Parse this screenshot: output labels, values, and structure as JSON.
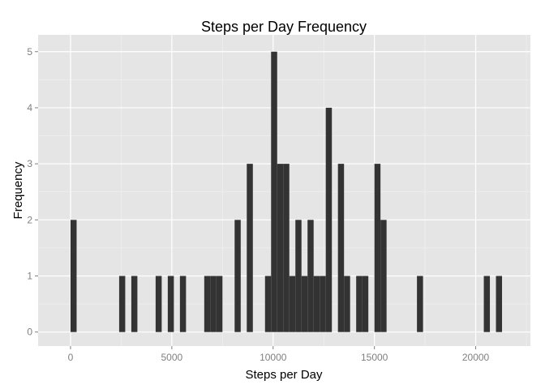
{
  "chart_data": {
    "type": "bar",
    "title": "Steps per Day Frequency",
    "xlabel": "Steps per Day",
    "ylabel": "Frequency",
    "xlim": [
      -1600,
      22700
    ],
    "ylim": [
      -0.25,
      5.3
    ],
    "bin_width": 300,
    "x_ticks": [
      0,
      5000,
      10000,
      15000,
      20000
    ],
    "x_tick_labels": [
      "0",
      "5000",
      "10000",
      "15000",
      "20000"
    ],
    "y_ticks": [
      0,
      1,
      2,
      3,
      4,
      5
    ],
    "y_tick_labels": [
      "0",
      "1",
      "2",
      "3",
      "4",
      "5"
    ],
    "grid": true,
    "bins": [
      {
        "x": 150,
        "count": 2
      },
      {
        "x": 2550,
        "count": 1
      },
      {
        "x": 3150,
        "count": 1
      },
      {
        "x": 4350,
        "count": 1
      },
      {
        "x": 4950,
        "count": 1
      },
      {
        "x": 5550,
        "count": 1
      },
      {
        "x": 6750,
        "count": 1
      },
      {
        "x": 7050,
        "count": 1
      },
      {
        "x": 7350,
        "count": 1
      },
      {
        "x": 8250,
        "count": 2
      },
      {
        "x": 8850,
        "count": 3
      },
      {
        "x": 9750,
        "count": 1
      },
      {
        "x": 10050,
        "count": 5
      },
      {
        "x": 10350,
        "count": 3
      },
      {
        "x": 10650,
        "count": 3
      },
      {
        "x": 10950,
        "count": 1
      },
      {
        "x": 11250,
        "count": 2
      },
      {
        "x": 11550,
        "count": 1
      },
      {
        "x": 11850,
        "count": 2
      },
      {
        "x": 12150,
        "count": 1
      },
      {
        "x": 12450,
        "count": 1
      },
      {
        "x": 12750,
        "count": 4
      },
      {
        "x": 13350,
        "count": 3
      },
      {
        "x": 13650,
        "count": 1
      },
      {
        "x": 14250,
        "count": 1
      },
      {
        "x": 14550,
        "count": 1
      },
      {
        "x": 15150,
        "count": 3
      },
      {
        "x": 15450,
        "count": 2
      },
      {
        "x": 17250,
        "count": 1
      },
      {
        "x": 20550,
        "count": 1
      },
      {
        "x": 21150,
        "count": 1
      }
    ],
    "colors": {
      "panel": "#e5e5e5",
      "grid_major": "#ffffff",
      "grid_minor": "#f2f2f2",
      "bar": "#333333",
      "tick_text": "#7f7f7f"
    }
  }
}
